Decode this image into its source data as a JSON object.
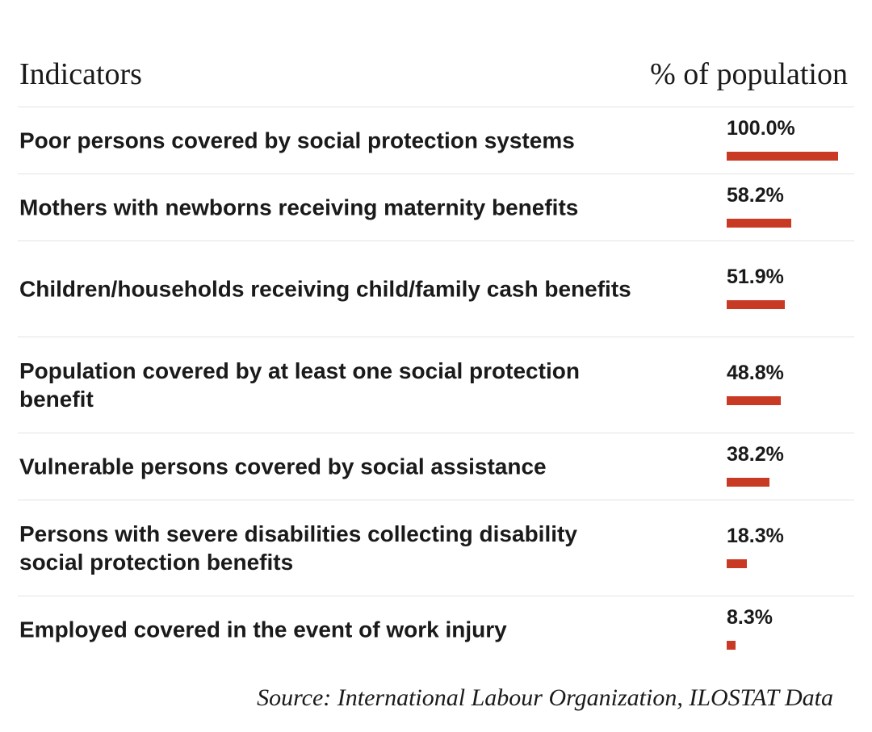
{
  "header": {
    "left": "Indicators",
    "right": "% of population"
  },
  "chart_data": {
    "type": "bar",
    "orientation": "horizontal",
    "xlabel": "% of population",
    "ylabel": "Indicators",
    "xlim": [
      0,
      100
    ],
    "categories": [
      "Poor persons covered by social protection systems",
      "Mothers with newborns receiving maternity benefits",
      "Children/households receiving child/family cash benefits",
      "Population covered by at least one social protection benefit",
      "Vulnerable persons covered by social assistance",
      "Persons with severe disabilities collecting disability social protection benefits",
      "Employed covered in the event of work injury"
    ],
    "values": [
      100.0,
      58.2,
      51.9,
      48.8,
      38.2,
      18.3,
      8.3
    ],
    "value_labels": [
      "100.0%",
      "58.2%",
      "51.9%",
      "48.8%",
      "38.2%",
      "18.3%",
      "8.3%"
    ],
    "bar_color": "#c93a25"
  },
  "source": "Source: International Labour Organization, ILOSTAT Data"
}
